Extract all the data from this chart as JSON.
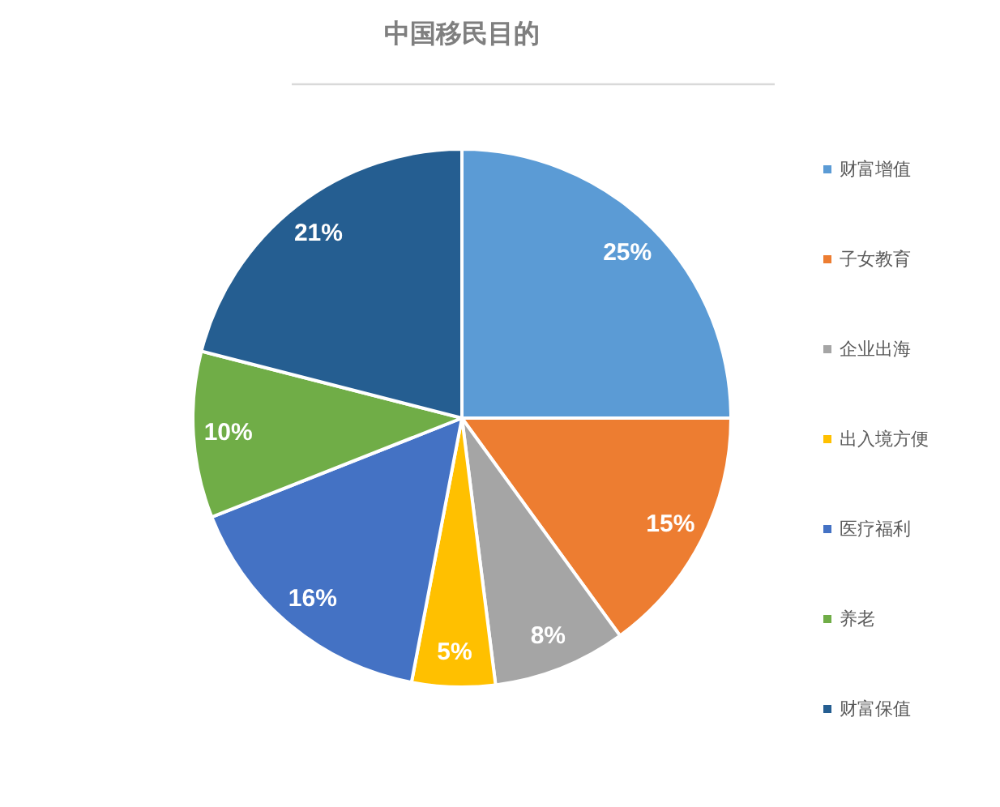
{
  "chart_data": {
    "type": "pie",
    "title": "中国移民目的",
    "categories": [
      "财富增值",
      "子女教育",
      "企业出海",
      "出入境方便",
      "医疗福利",
      "养老",
      "财富保值"
    ],
    "values": [
      25,
      15,
      8,
      5,
      16,
      10,
      21
    ],
    "colors": [
      "#5b9bd5",
      "#ed7d31",
      "#a5a5a5",
      "#ffc000",
      "#4472c4",
      "#70ad47",
      "#255e91"
    ],
    "value_labels": [
      "25%",
      "15%",
      "8%",
      "5%",
      "16%",
      "10%",
      "21%"
    ],
    "legend": "right"
  }
}
